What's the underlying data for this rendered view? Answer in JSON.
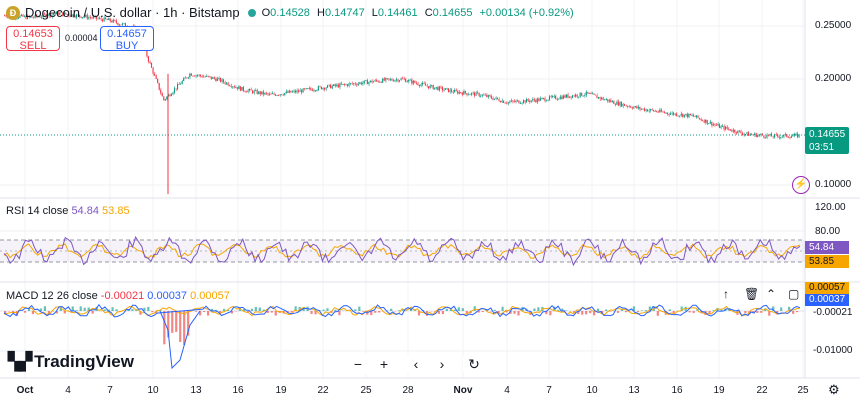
{
  "header": {
    "symbol": "Dogecoin / U.S. dollar · 1h · Bitstamp",
    "open_label": "O",
    "open": "0.14528",
    "high_label": "H",
    "high": "0.14747",
    "low_label": "L",
    "low": "0.14461",
    "close_label": "C",
    "close": "0.14655",
    "change": "+0.00134 (+0.92%)"
  },
  "trade": {
    "sell_price": "0.14653",
    "sell_label": "SELL",
    "buy_price": "0.14657",
    "buy_label": "BUY",
    "spread": "0.00004"
  },
  "price_axis": {
    "ticks": [
      "0.25000",
      "0.20000",
      "0.10000"
    ],
    "last_price": "0.14655",
    "countdown": "03:51"
  },
  "rsi": {
    "label": "RSI 14 close",
    "value": "54.84",
    "ma_value": "53.85",
    "ticks": [
      "120.00",
      "80.00"
    ]
  },
  "macd": {
    "label": "MACD 12 26 close",
    "hist": "-0.00021",
    "macd": "0.00037",
    "signal": "0.00057",
    "ticks": [
      "-0.01000"
    ]
  },
  "x_axis": [
    "Oct",
    "4",
    "7",
    "10",
    "13",
    "16",
    "19",
    "22",
    "25",
    "28",
    "Nov",
    "4",
    "7",
    "10",
    "13",
    "16",
    "19",
    "22",
    "25"
  ],
  "brand": {
    "name": "TradingView"
  },
  "colors": {
    "up": "#089981",
    "down": "#f23645",
    "rsi": "#7e57c2",
    "rsi_ma": "#f7a600",
    "macd": "#2962ff",
    "signal": "#f7a600"
  },
  "chart_data": {
    "type": "line",
    "x": [
      "Oct 1",
      "Oct 3",
      "Oct 5",
      "Oct 7",
      "Oct 9",
      "Oct 11",
      "Oct 12",
      "Oct 13",
      "Oct 15",
      "Oct 17",
      "Oct 19",
      "Oct 21",
      "Oct 23",
      "Oct 25",
      "Oct 27",
      "Oct 28",
      "Oct 30",
      "Nov 1",
      "Nov 3",
      "Nov 5",
      "Nov 7",
      "Nov 9",
      "Nov 11",
      "Nov 13",
      "Nov 15",
      "Nov 17",
      "Nov 19",
      "Nov 21",
      "Nov 22",
      "Nov 24",
      "Nov 25"
    ],
    "series": [
      {
        "values": [
          0.26,
          0.258,
          0.262,
          0.259,
          0.255,
          0.247,
          0.18,
          0.205,
          0.2,
          0.19,
          0.185,
          0.188,
          0.192,
          0.195,
          0.198,
          0.2,
          0.193,
          0.188,
          0.185,
          0.178,
          0.18,
          0.183,
          0.186,
          0.178,
          0.172,
          0.168,
          0.165,
          0.155,
          0.148,
          0.146,
          0.14655
        ]
      }
    ],
    "ylim": [
      0.09,
      0.27
    ]
  }
}
